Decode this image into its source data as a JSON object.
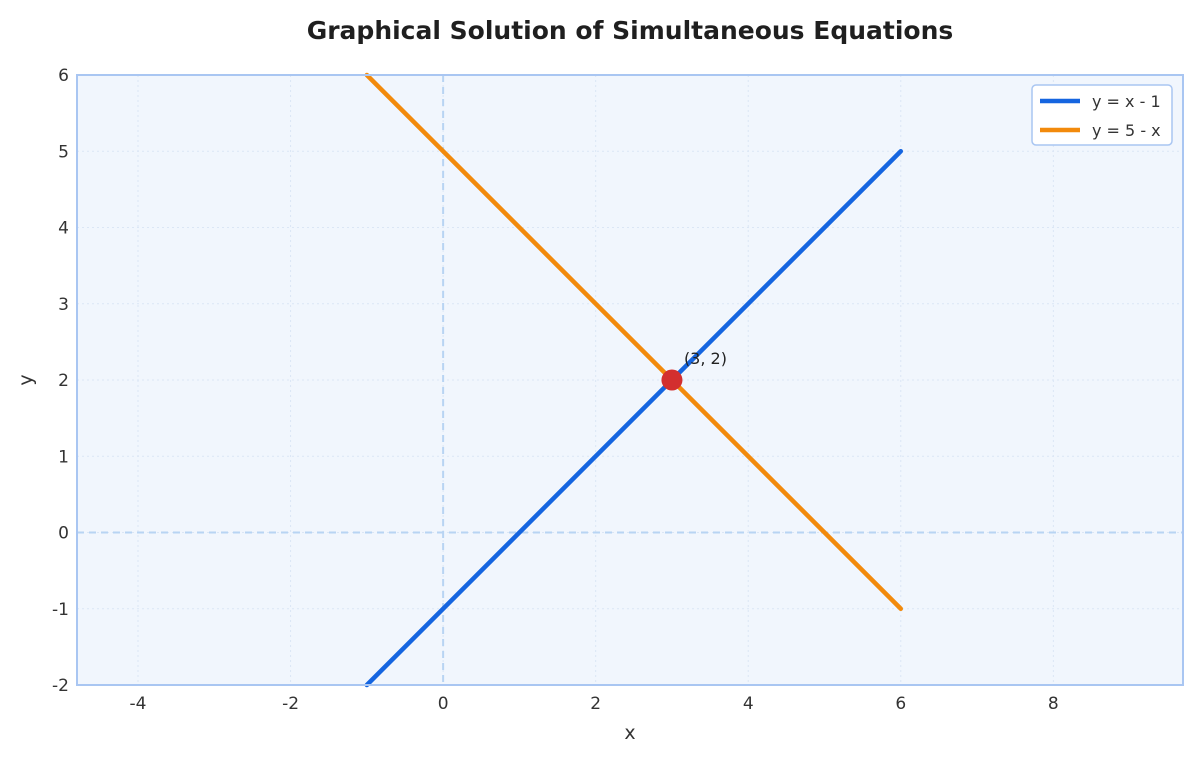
{
  "chart_data": {
    "type": "line",
    "title": "Graphical Solution of Simultaneous Equations",
    "xlabel": "x",
    "ylabel": "y",
    "xlim": [
      -4.8,
      9.7
    ],
    "ylim": [
      -2,
      6
    ],
    "xticks": [
      -4,
      -2,
      0,
      2,
      4,
      6,
      8
    ],
    "xtick_labels": [
      "-4",
      "-2",
      "0",
      "2",
      "4",
      "6",
      "8"
    ],
    "yticks": [
      -2,
      -1,
      0,
      1,
      2,
      3,
      4,
      5,
      6
    ],
    "ytick_labels": [
      "-2",
      "-1",
      "0",
      "1",
      "2",
      "3",
      "4",
      "5",
      "6"
    ],
    "grid": true,
    "legend_position": "top-right",
    "series": [
      {
        "name": "y = x - 1",
        "color": "#1565e0",
        "x": [
          -1,
          6
        ],
        "y": [
          -2,
          5
        ]
      },
      {
        "name": "y = 5 - x",
        "color": "#f28a0c",
        "x": [
          -1,
          6
        ],
        "y": [
          6,
          -1
        ]
      }
    ],
    "points": [
      {
        "x": 3,
        "y": 2,
        "label": "(3, 2)",
        "color": "#d32f2f"
      }
    ],
    "reference_lines": [
      {
        "axis": "x",
        "value": 0,
        "style": "dashed"
      },
      {
        "axis": "y",
        "value": 0,
        "style": "dashed"
      }
    ],
    "colors": {
      "plot_background": "#f1f6fd",
      "plot_border": "#a9c6f2",
      "grid": "#dbe6f5",
      "reference_line": "#b8d4f3"
    }
  }
}
